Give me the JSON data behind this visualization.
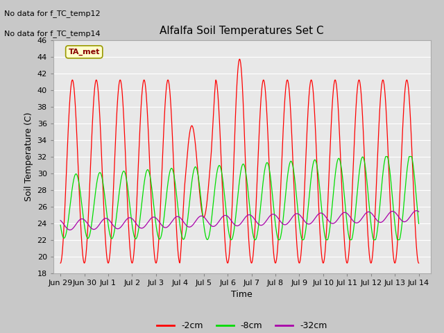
{
  "title": "Alfalfa Soil Temperatures Set C",
  "ylabel": "Soil Temperature (C)",
  "xlabel": "Time",
  "no_data_text": [
    "No data for f_TC_temp12",
    "No data for f_TC_temp14"
  ],
  "ta_met_label": "TA_met",
  "ylim": [
    18,
    46
  ],
  "yticks": [
    18,
    20,
    22,
    24,
    26,
    28,
    30,
    32,
    34,
    36,
    38,
    40,
    42,
    44,
    46
  ],
  "xtick_labels": [
    "Jun 29",
    "Jun 30",
    "Jul 1",
    "Jul 2",
    "Jul 3",
    "Jul 4",
    "Jul 5",
    "Jul 6",
    "Jul 7",
    "Jul 8",
    "Jul 9",
    "Jul 10",
    "Jul 11",
    "Jul 12",
    "Jul 13",
    "Jul 14"
  ],
  "colors": {
    "red": "#ff0000",
    "green": "#00dd00",
    "purple": "#aa00aa",
    "fig_bg": "#c8c8c8",
    "plot_bg": "#e8e8e8",
    "grid": "#ffffff",
    "ta_met_bg": "#ffffcc",
    "ta_met_border": "#999900",
    "ta_met_text": "#880000"
  },
  "legend": [
    {
      "label": "-2cm",
      "color": "#ff0000"
    },
    {
      "label": "-8cm",
      "color": "#00dd00"
    },
    {
      "label": "-32cm",
      "color": "#aa00aa"
    }
  ]
}
